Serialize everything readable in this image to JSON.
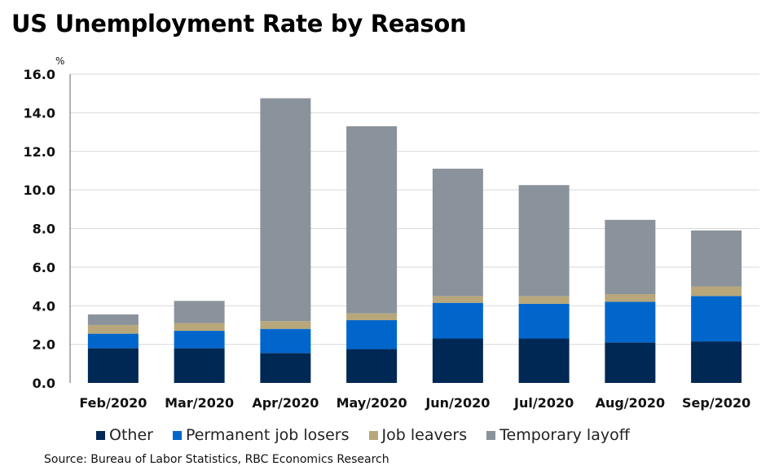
{
  "chart_data": {
    "type": "bar",
    "stacked": true,
    "title": "US Unemployment Rate by Reason",
    "yunit": "%",
    "ylim": [
      0,
      16
    ],
    "yticks": [
      0,
      2,
      4,
      6,
      8,
      10,
      12,
      14,
      16
    ],
    "ytick_labels": [
      "0.0",
      "2.0",
      "4.0",
      "6.0",
      "8.0",
      "10.0",
      "12.0",
      "14.0",
      "16.0"
    ],
    "grid": true,
    "legend_position": "bottom",
    "categories": [
      "Feb/2020",
      "Mar/2020",
      "Apr/2020",
      "May/2020",
      "Jun/2020",
      "Jul/2020",
      "Aug/2020",
      "Sep/2020"
    ],
    "series": [
      {
        "name": "Other",
        "color": "#002855",
        "values": [
          1.8,
          1.8,
          1.55,
          1.75,
          2.3,
          2.3,
          2.1,
          2.15
        ]
      },
      {
        "name": "Permanent job losers",
        "color": "#0066cc",
        "values": [
          0.75,
          0.9,
          1.25,
          1.5,
          1.85,
          1.8,
          2.1,
          2.35
        ]
      },
      {
        "name": "Job leavers",
        "color": "#b8a77a",
        "values": [
          0.45,
          0.4,
          0.4,
          0.35,
          0.35,
          0.4,
          0.4,
          0.5
        ]
      },
      {
        "name": "Temporary layoff",
        "color": "#8a939b",
        "values": [
          0.55,
          1.15,
          11.55,
          9.7,
          6.6,
          5.75,
          3.85,
          2.9
        ]
      }
    ],
    "source": "Source: Bureau of Labor Statistics, RBC Economics Research"
  }
}
